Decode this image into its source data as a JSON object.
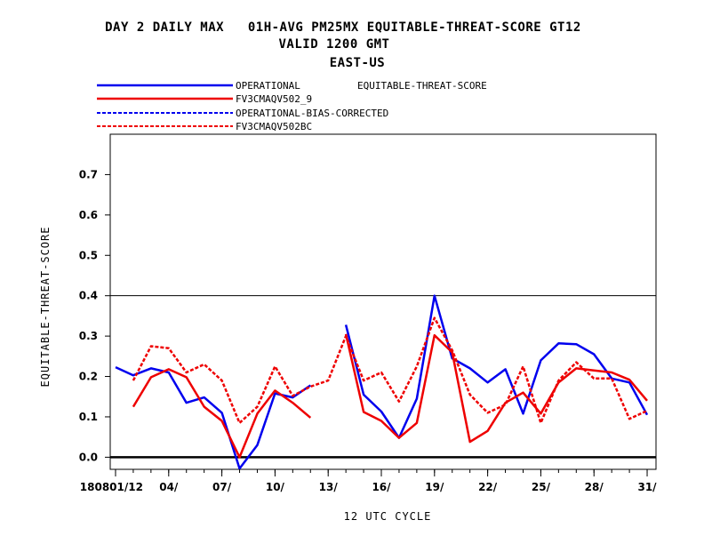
{
  "chart_data": {
    "type": "line",
    "title_lines": [
      "DAY 2 DAILY MAX   01H-AVG PM25MX EQUITABLE-THREAT-SCORE GT12",
      "VALID 1200 GMT",
      "EAST-US"
    ],
    "metric_label": "EQUITABLE-THREAT-SCORE",
    "xlabel": "12 UTC CYCLE",
    "ylabel": "EQUITABLE-THREAT-SCORE",
    "ylim": [
      -0.03,
      0.8
    ],
    "xlim": [
      0.7,
      31.5
    ],
    "yticks": [
      0.0,
      0.1,
      0.2,
      0.3,
      0.4,
      0.5,
      0.6,
      0.7
    ],
    "ytick_labels": [
      "0.0",
      "0.1",
      "0.2",
      "0.3",
      "0.4",
      "0.5",
      "0.6",
      "0.7"
    ],
    "xtick_positions": [
      1,
      4,
      7,
      10,
      13,
      16,
      19,
      22,
      25,
      28,
      31
    ],
    "xtick_labels": [
      "180801/12",
      "04/",
      "07/",
      "10/",
      "13/",
      "16/",
      "19/",
      "22/",
      "25/",
      "28/",
      "31/"
    ],
    "reference_line": 0.4,
    "zero_line": 0.0,
    "x": [
      1,
      2,
      3,
      4,
      5,
      6,
      7,
      8,
      9,
      10,
      11,
      12,
      13,
      14,
      15,
      16,
      17,
      18,
      19,
      20,
      21,
      22,
      23,
      24,
      25,
      26,
      27,
      28,
      29,
      30,
      31
    ],
    "series": [
      {
        "name": "OPERATIONAL",
        "color": "#0000ee",
        "dash": "solid",
        "values": [
          0.223,
          0.203,
          0.22,
          0.21,
          0.135,
          0.148,
          0.11,
          -0.028,
          0.03,
          0.158,
          0.148,
          0.178,
          null,
          0.328,
          0.155,
          0.113,
          0.048,
          0.145,
          0.4,
          0.245,
          0.22,
          0.185,
          0.218,
          0.108,
          0.24,
          0.282,
          0.28,
          0.255,
          0.195,
          0.185,
          0.105
        ]
      },
      {
        "name": "FV3CMAQV502_9",
        "color": "#ee0000",
        "dash": "solid",
        "values": [
          null,
          0.125,
          0.198,
          0.218,
          0.198,
          0.125,
          0.09,
          0.0,
          0.108,
          0.165,
          0.135,
          0.098,
          null,
          0.305,
          0.112,
          0.09,
          0.048,
          0.085,
          0.302,
          0.26,
          0.038,
          0.065,
          0.135,
          0.16,
          0.108,
          0.185,
          0.22,
          0.215,
          0.21,
          0.192,
          0.14
        ]
      },
      {
        "name": "OPERATIONAL-BIAS-CORRECTED",
        "color": "#0000ee",
        "dash": "dashed",
        "values": [
          null,
          null,
          null,
          null,
          null,
          null,
          null,
          null,
          null,
          null,
          null,
          null,
          null,
          null,
          null,
          null,
          null,
          null,
          null,
          null,
          null,
          null,
          null,
          null,
          null,
          null,
          null,
          null,
          null,
          null,
          null
        ]
      },
      {
        "name": "FV3CMAQV502BC",
        "color": "#ee0000",
        "dash": "dashed",
        "values": [
          null,
          0.19,
          0.275,
          0.27,
          0.21,
          0.23,
          0.19,
          0.085,
          0.125,
          0.225,
          0.152,
          0.175,
          0.19,
          0.3,
          0.19,
          0.21,
          0.138,
          0.225,
          0.345,
          0.265,
          0.155,
          0.11,
          0.13,
          0.225,
          0.085,
          0.19,
          0.235,
          0.195,
          0.195,
          0.095,
          0.115
        ]
      }
    ]
  }
}
